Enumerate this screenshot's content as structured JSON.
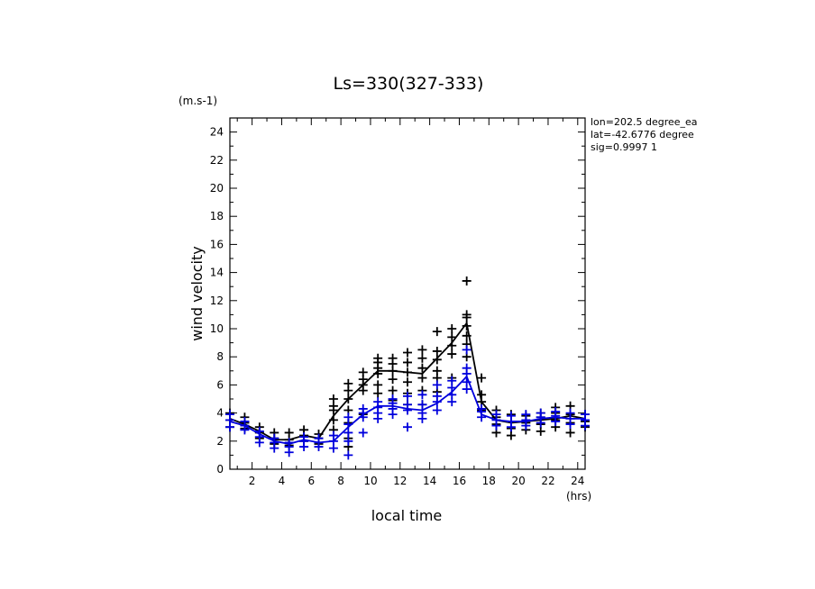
{
  "chart_data": {
    "type": "scatter",
    "title": "Ls=330(327-333)",
    "xlabel": "local time",
    "ylabel": "wind velocity",
    "x_unit": "(hrs)",
    "y_unit": "(m.s-1)",
    "info": [
      "lon=202.5 degree_ea",
      "lat=-42.6776 degree",
      "sig=0.9997 1"
    ],
    "xlim": [
      0.5,
      24.5
    ],
    "ylim": [
      0,
      25
    ],
    "xticks": [
      2,
      4,
      6,
      8,
      10,
      12,
      14,
      16,
      18,
      20,
      22,
      24
    ],
    "yticks": [
      0,
      2,
      4,
      6,
      8,
      10,
      12,
      14,
      16,
      18,
      20,
      22,
      24
    ],
    "grid": false,
    "series": [
      {
        "color": "#000000",
        "x": [
          0.5,
          1.5,
          2.5,
          3.5,
          4.5,
          5.5,
          6.5,
          7.5,
          8.5,
          9.5,
          10.5,
          11.5,
          12.5,
          13.5,
          14.5,
          15.5,
          16.5,
          17.5,
          18.5,
          19.5,
          20.5,
          21.5,
          22.5,
          23.5,
          24.5
        ],
        "mean": [
          3.6,
          3.2,
          2.7,
          2.1,
          2.1,
          2.4,
          2.2,
          3.8,
          5.0,
          6.0,
          7.0,
          7.0,
          6.9,
          6.8,
          7.9,
          9.0,
          10.4,
          4.8,
          3.5,
          3.3,
          3.4,
          3.5,
          3.6,
          3.8,
          3.6
        ],
        "points": [
          [
            0.5,
            3.0
          ],
          [
            0.5,
            3.5
          ],
          [
            0.5,
            4.0
          ],
          [
            1.5,
            2.9
          ],
          [
            1.5,
            3.3
          ],
          [
            1.5,
            3.7
          ],
          [
            2.5,
            2.2
          ],
          [
            2.5,
            2.6
          ],
          [
            2.5,
            3.0
          ],
          [
            3.5,
            1.8
          ],
          [
            3.5,
            2.2
          ],
          [
            3.5,
            2.6
          ],
          [
            4.5,
            1.7
          ],
          [
            4.5,
            2.1
          ],
          [
            4.5,
            2.6
          ],
          [
            5.5,
            2.0
          ],
          [
            5.5,
            2.4
          ],
          [
            5.5,
            2.8
          ],
          [
            6.5,
            1.8
          ],
          [
            6.5,
            2.2
          ],
          [
            6.5,
            2.5
          ],
          [
            7.5,
            2.8
          ],
          [
            7.5,
            3.5
          ],
          [
            7.5,
            4.2
          ],
          [
            7.5,
            4.5
          ],
          [
            7.5,
            5.0
          ],
          [
            8.5,
            1.6
          ],
          [
            8.5,
            2.2
          ],
          [
            8.5,
            3.3
          ],
          [
            8.5,
            4.2
          ],
          [
            8.5,
            5.0
          ],
          [
            8.5,
            5.6
          ],
          [
            8.5,
            6.1
          ],
          [
            9.5,
            3.9
          ],
          [
            9.5,
            5.6
          ],
          [
            9.5,
            6.0
          ],
          [
            9.5,
            6.4
          ],
          [
            9.5,
            6.9
          ],
          [
            10.5,
            5.4
          ],
          [
            10.5,
            6.0
          ],
          [
            10.5,
            6.8
          ],
          [
            10.5,
            7.2
          ],
          [
            10.5,
            7.6
          ],
          [
            10.5,
            7.9
          ],
          [
            11.5,
            4.9
          ],
          [
            11.5,
            5.6
          ],
          [
            11.5,
            6.4
          ],
          [
            11.5,
            7.0
          ],
          [
            11.5,
            7.5
          ],
          [
            11.5,
            7.9
          ],
          [
            12.5,
            4.6
          ],
          [
            12.5,
            5.4
          ],
          [
            12.5,
            6.2
          ],
          [
            12.5,
            6.9
          ],
          [
            12.5,
            7.6
          ],
          [
            12.5,
            8.3
          ],
          [
            13.5,
            4.6
          ],
          [
            13.5,
            5.6
          ],
          [
            13.5,
            6.5
          ],
          [
            13.5,
            7.2
          ],
          [
            13.5,
            7.9
          ],
          [
            13.5,
            8.5
          ],
          [
            14.5,
            5.5
          ],
          [
            14.5,
            6.5
          ],
          [
            14.5,
            7.0
          ],
          [
            14.5,
            7.8
          ],
          [
            14.5,
            8.4
          ],
          [
            14.5,
            9.8
          ],
          [
            15.5,
            6.5
          ],
          [
            15.5,
            8.2
          ],
          [
            15.5,
            8.8
          ],
          [
            15.5,
            9.4
          ],
          [
            15.5,
            10.0
          ],
          [
            16.5,
            8.0
          ],
          [
            16.5,
            8.9
          ],
          [
            16.5,
            9.5
          ],
          [
            16.5,
            10.2
          ],
          [
            16.5,
            10.8
          ],
          [
            16.5,
            11.0
          ],
          [
            16.5,
            13.4
          ],
          [
            17.5,
            4.2
          ],
          [
            17.5,
            4.8
          ],
          [
            17.5,
            5.3
          ],
          [
            17.5,
            6.5
          ],
          [
            18.5,
            2.6
          ],
          [
            18.5,
            3.2
          ],
          [
            18.5,
            3.7
          ],
          [
            18.5,
            4.2
          ],
          [
            19.5,
            2.4
          ],
          [
            19.5,
            2.9
          ],
          [
            19.5,
            3.4
          ],
          [
            19.5,
            3.9
          ],
          [
            20.5,
            2.8
          ],
          [
            20.5,
            3.3
          ],
          [
            20.5,
            3.8
          ],
          [
            21.5,
            2.7
          ],
          [
            21.5,
            3.2
          ],
          [
            21.5,
            3.7
          ],
          [
            21.5,
            4.0
          ],
          [
            22.5,
            3.0
          ],
          [
            22.5,
            3.5
          ],
          [
            22.5,
            4.0
          ],
          [
            22.5,
            4.4
          ],
          [
            23.5,
            2.6
          ],
          [
            23.5,
            3.3
          ],
          [
            23.5,
            3.9
          ],
          [
            23.5,
            4.5
          ],
          [
            24.5,
            3.0
          ],
          [
            24.5,
            3.4
          ],
          [
            24.5,
            3.9
          ]
        ]
      },
      {
        "color": "#0000dd",
        "x": [
          0.5,
          1.5,
          2.5,
          3.5,
          4.5,
          5.5,
          6.5,
          7.5,
          8.5,
          9.5,
          10.5,
          11.5,
          12.5,
          13.5,
          14.5,
          15.5,
          16.5,
          17.5,
          18.5,
          19.5,
          20.5,
          21.5,
          22.5,
          23.5,
          24.5
        ],
        "mean": [
          3.4,
          3.1,
          2.5,
          2.0,
          1.8,
          2.1,
          1.9,
          2.0,
          3.0,
          3.9,
          4.5,
          4.5,
          4.3,
          4.2,
          4.7,
          5.5,
          6.6,
          3.9,
          3.5,
          3.4,
          3.4,
          3.6,
          3.7,
          3.6,
          3.6
        ],
        "points": [
          [
            0.5,
            3.0
          ],
          [
            0.5,
            3.5
          ],
          [
            0.5,
            3.9
          ],
          [
            1.5,
            2.8
          ],
          [
            1.5,
            3.1
          ],
          [
            1.5,
            3.4
          ],
          [
            2.5,
            1.9
          ],
          [
            2.5,
            2.3
          ],
          [
            2.5,
            2.7
          ],
          [
            3.5,
            1.5
          ],
          [
            3.5,
            1.9
          ],
          [
            3.5,
            2.2
          ],
          [
            4.5,
            1.2
          ],
          [
            4.5,
            1.6
          ],
          [
            4.5,
            1.9
          ],
          [
            5.5,
            1.6
          ],
          [
            5.5,
            2.0
          ],
          [
            5.5,
            2.3
          ],
          [
            6.5,
            1.6
          ],
          [
            6.5,
            1.9
          ],
          [
            6.5,
            2.2
          ],
          [
            7.5,
            1.5
          ],
          [
            7.5,
            2.0
          ],
          [
            7.5,
            2.4
          ],
          [
            8.5,
            1.0
          ],
          [
            8.5,
            2.0
          ],
          [
            8.5,
            2.6
          ],
          [
            8.5,
            3.2
          ],
          [
            8.5,
            3.7
          ],
          [
            9.5,
            2.6
          ],
          [
            9.5,
            3.7
          ],
          [
            9.5,
            4.0
          ],
          [
            9.5,
            4.3
          ],
          [
            10.5,
            3.6
          ],
          [
            10.5,
            4.0
          ],
          [
            10.5,
            4.4
          ],
          [
            10.5,
            4.8
          ],
          [
            11.5,
            3.9
          ],
          [
            11.5,
            4.3
          ],
          [
            11.5,
            4.7
          ],
          [
            11.5,
            5.0
          ],
          [
            12.5,
            3.0
          ],
          [
            12.5,
            4.2
          ],
          [
            12.5,
            4.6
          ],
          [
            12.5,
            5.2
          ],
          [
            13.5,
            3.6
          ],
          [
            13.5,
            4.0
          ],
          [
            13.5,
            4.6
          ],
          [
            13.5,
            5.3
          ],
          [
            14.5,
            4.2
          ],
          [
            14.5,
            4.8
          ],
          [
            14.5,
            5.2
          ],
          [
            14.5,
            6.0
          ],
          [
            15.5,
            4.8
          ],
          [
            15.5,
            5.3
          ],
          [
            15.5,
            5.8
          ],
          [
            15.5,
            6.3
          ],
          [
            16.5,
            5.7
          ],
          [
            16.5,
            6.2
          ],
          [
            16.5,
            6.8
          ],
          [
            16.5,
            7.2
          ],
          [
            16.5,
            8.5
          ],
          [
            17.5,
            3.7
          ],
          [
            17.5,
            4.1
          ],
          [
            17.5,
            4.3
          ],
          [
            18.5,
            3.1
          ],
          [
            18.5,
            3.5
          ],
          [
            18.5,
            3.9
          ],
          [
            19.5,
            3.0
          ],
          [
            19.5,
            3.4
          ],
          [
            19.5,
            3.8
          ],
          [
            20.5,
            3.1
          ],
          [
            20.5,
            3.5
          ],
          [
            20.5,
            3.9
          ],
          [
            21.5,
            3.3
          ],
          [
            21.5,
            3.7
          ],
          [
            21.5,
            4.0
          ],
          [
            22.5,
            3.4
          ],
          [
            22.5,
            3.8
          ],
          [
            22.5,
            4.1
          ],
          [
            23.5,
            3.2
          ],
          [
            23.5,
            3.6
          ],
          [
            23.5,
            4.0
          ],
          [
            24.5,
            3.1
          ],
          [
            24.5,
            3.5
          ],
          [
            24.5,
            3.9
          ]
        ]
      }
    ]
  }
}
